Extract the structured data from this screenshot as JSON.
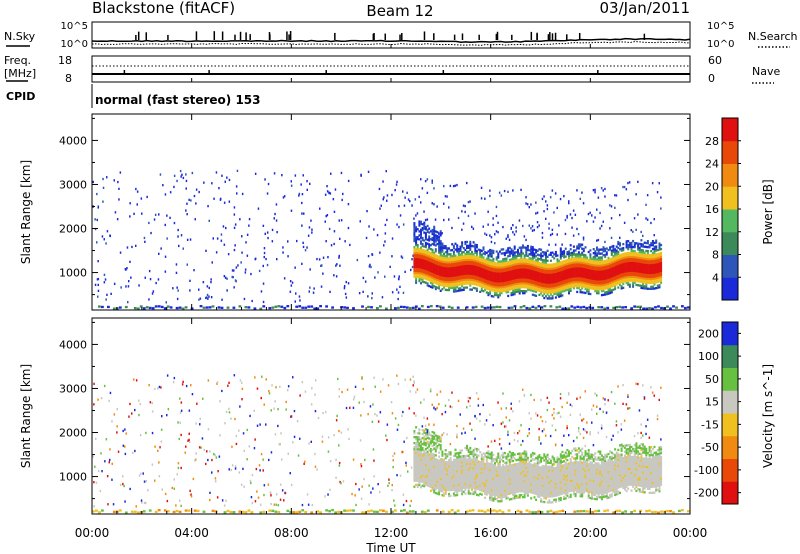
{
  "header": {
    "station": "Blackstone (fitACF)",
    "beam": "Beam 12",
    "date": "03/Jan/2011"
  },
  "noise_panel": {
    "left_label": "N.Sky",
    "right_label": "N.Search",
    "left_ticks": [
      "10^5",
      "10^0"
    ],
    "right_ticks": [
      "10^5",
      "10^0"
    ]
  },
  "freq_panel": {
    "left_label_1": "Freq.",
    "left_label_2": "[MHz]",
    "right_label": "Nave",
    "left_ticks": [
      "18",
      "8"
    ],
    "right_ticks": [
      "60",
      "0"
    ]
  },
  "cpid_panel": {
    "label": "CPID",
    "text": "normal (fast stereo) 153"
  },
  "time_axis": {
    "label": "Time UT",
    "ticks": [
      "00:00",
      "04:00",
      "08:00",
      "12:00",
      "16:00",
      "20:00",
      "00:00"
    ]
  },
  "colors": {
    "power": [
      "#1a2ad8",
      "#2e56b8",
      "#3c8a5a",
      "#54b860",
      "#f0c020",
      "#f08a10",
      "#e84808",
      "#e01010"
    ],
    "velocity": [
      "#e01010",
      "#e84808",
      "#f08a10",
      "#f0c020",
      "#c8c8c0",
      "#68c040",
      "#3c8a5a",
      "#1a2ad8"
    ]
  },
  "chart_data": [
    {
      "type": "heatmap",
      "panel": "power",
      "ylabel": "Slant Range [km]",
      "xlabel": "",
      "y_ticks": [
        1000,
        2000,
        3000,
        4000
      ],
      "ylim": [
        150,
        4600
      ],
      "xlim_hours": [
        0,
        24
      ],
      "colorbar_label": "Power [dB]",
      "colorbar_ticks": [
        "4",
        "8",
        "12",
        "16",
        "20",
        "24",
        "28"
      ],
      "summary": {
        "band_start_hour": 12.9,
        "band_end_hour": 22.8,
        "main_echo_range_km": [
          600,
          1600
        ],
        "peak_power_db": 30
      }
    },
    {
      "type": "heatmap",
      "panel": "velocity",
      "ylabel": "Slant Range [km]",
      "xlabel": "Time UT",
      "y_ticks": [
        1000,
        2000,
        3000,
        4000
      ],
      "ylim": [
        150,
        4600
      ],
      "xlim_hours": [
        0,
        24
      ],
      "colorbar_label": "Velocity [m s^-1]",
      "colorbar_ticks": [
        "200",
        "100",
        "50",
        "15",
        "-15",
        "-50",
        "-100",
        "-200"
      ],
      "summary": {
        "band_start_hour": 12.9,
        "band_end_hour": 22.8,
        "dominant_velocity_bin": "-15..15"
      }
    }
  ]
}
